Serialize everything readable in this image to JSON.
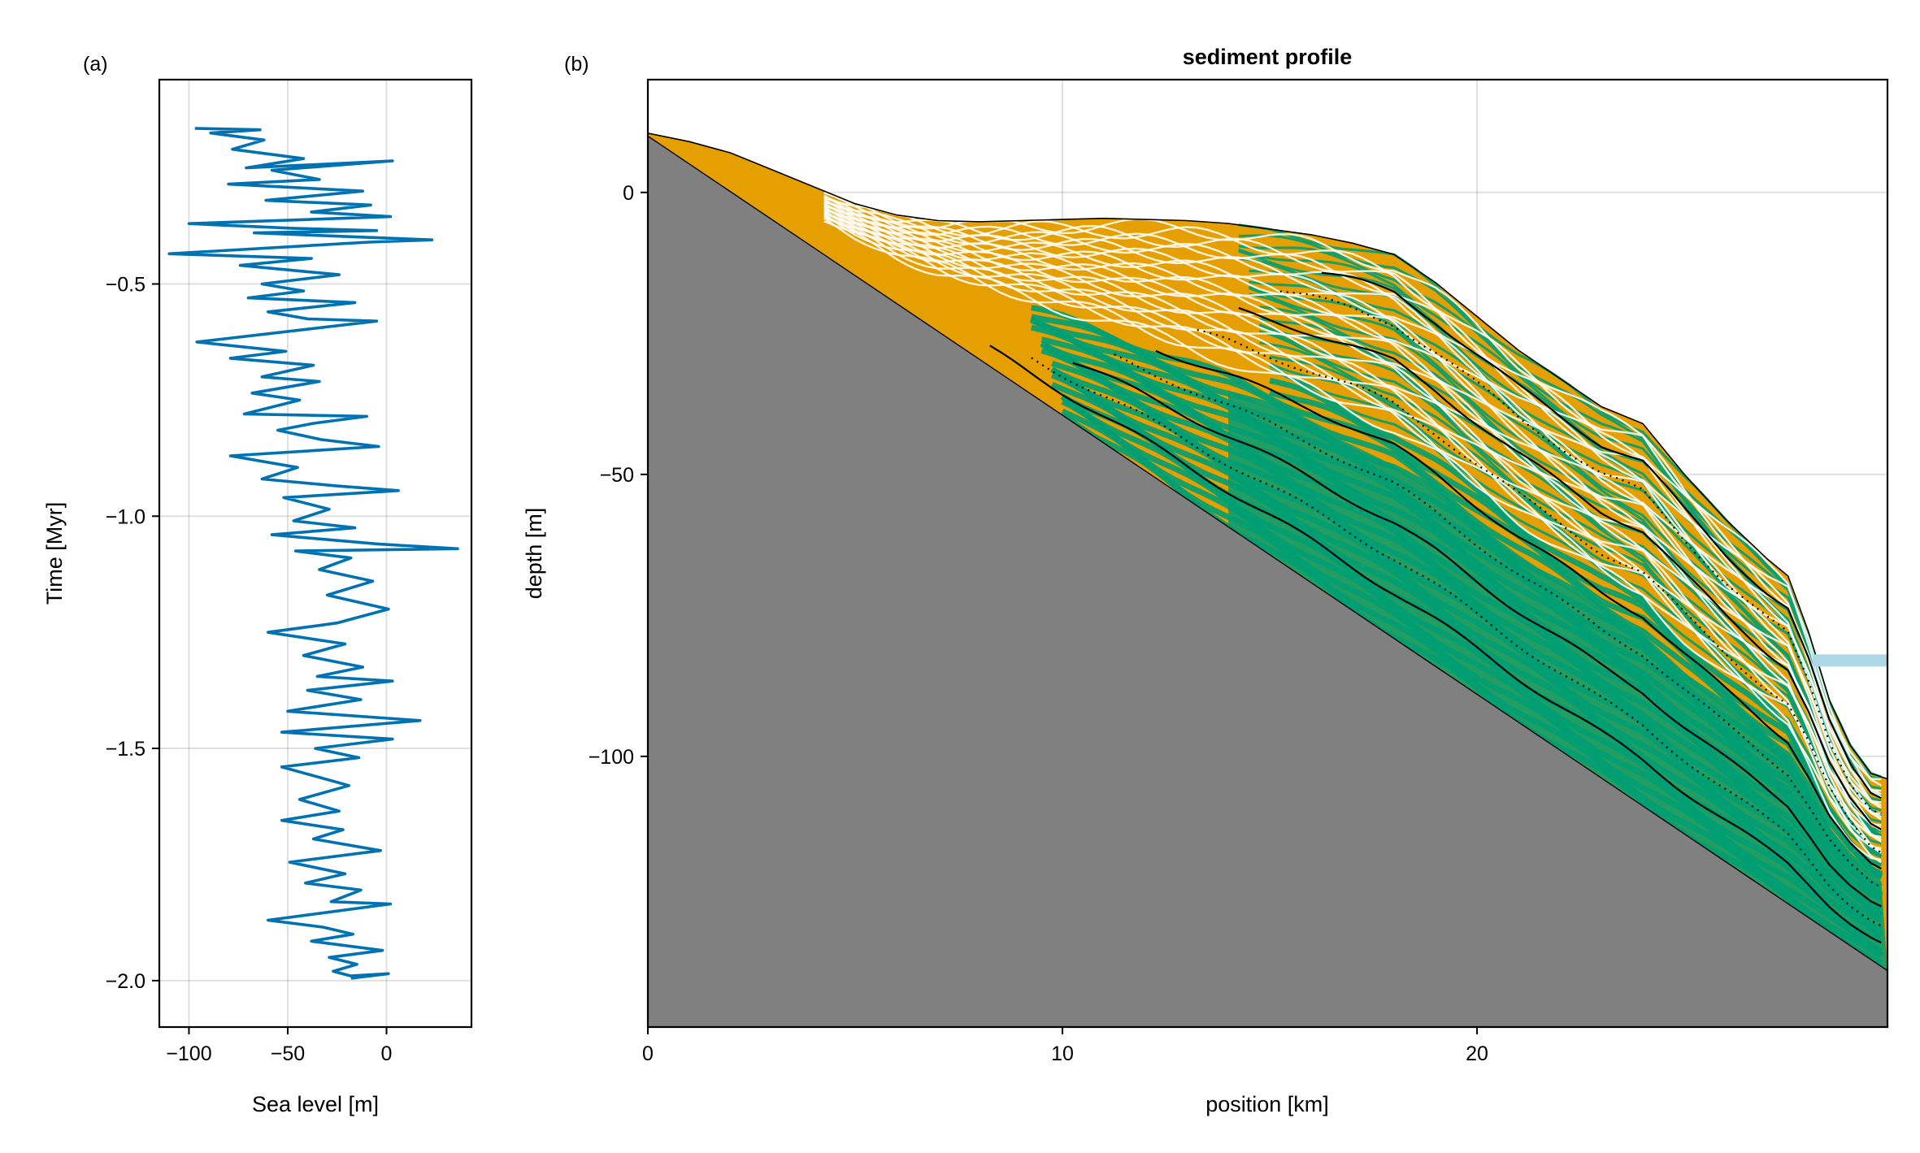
{
  "chart_data": [
    {
      "panel": "(a)",
      "type": "line",
      "title": "",
      "xlabel": "Sea level [m]",
      "ylabel": "Time [Myr]",
      "xlim": [
        -115,
        43
      ],
      "ylim": [
        -2.1,
        -0.06
      ],
      "xticks": [
        -100,
        -50,
        0
      ],
      "xtick_labels": [
        "−100",
        "−50",
        "0"
      ],
      "yticks": [
        -2.0,
        -1.5,
        -1.0,
        -0.5
      ],
      "ytick_labels": [
        "−2.0",
        "−1.5",
        "−1.0",
        "−0.5"
      ],
      "grid": true,
      "series": [
        {
          "color": "#0072b2",
          "points": [
            [
              -97,
              -0.165
            ],
            [
              -64,
              -0.168
            ],
            [
              -89,
              -0.175
            ],
            [
              -62,
              -0.19
            ],
            [
              -78,
              -0.21
            ],
            [
              -42,
              -0.23
            ],
            [
              -71,
              -0.25
            ],
            [
              3,
              -0.235
            ],
            [
              -58,
              -0.255
            ],
            [
              -34,
              -0.275
            ],
            [
              -80,
              -0.285
            ],
            [
              -12,
              -0.3
            ],
            [
              -61,
              -0.32
            ],
            [
              -8,
              -0.33
            ],
            [
              -38,
              -0.345
            ],
            [
              2,
              -0.355
            ],
            [
              -100,
              -0.37
            ],
            [
              -48,
              -0.38
            ],
            [
              -5,
              -0.385
            ],
            [
              -67,
              -0.39
            ],
            [
              23,
              -0.405
            ],
            [
              -9,
              -0.41
            ],
            [
              -110,
              -0.435
            ],
            [
              -38,
              -0.445
            ],
            [
              -74,
              -0.46
            ],
            [
              -24,
              -0.48
            ],
            [
              -63,
              -0.5
            ],
            [
              -42,
              -0.515
            ],
            [
              -70,
              -0.53
            ],
            [
              -16,
              -0.54
            ],
            [
              -60,
              -0.56
            ],
            [
              -40,
              -0.575
            ],
            [
              -5,
              -0.58
            ],
            [
              -96,
              -0.625
            ],
            [
              -51,
              -0.645
            ],
            [
              -79,
              -0.66
            ],
            [
              -37,
              -0.675
            ],
            [
              -63,
              -0.7
            ],
            [
              -34,
              -0.71
            ],
            [
              -68,
              -0.735
            ],
            [
              -44,
              -0.75
            ],
            [
              -72,
              -0.78
            ],
            [
              -10,
              -0.785
            ],
            [
              -37,
              -0.8
            ],
            [
              -55,
              -0.815
            ],
            [
              -33,
              -0.835
            ],
            [
              -4,
              -0.85
            ],
            [
              -79,
              -0.87
            ],
            [
              -45,
              -0.895
            ],
            [
              -63,
              -0.92
            ],
            [
              -25,
              -0.935
            ],
            [
              6,
              -0.945
            ],
            [
              -52,
              -0.96
            ],
            [
              -29,
              -0.985
            ],
            [
              -47,
              -1.01
            ],
            [
              -16,
              -1.025
            ],
            [
              -58,
              -1.04
            ],
            [
              -4,
              -1.06
            ],
            [
              36,
              -1.07
            ],
            [
              -46,
              -1.075
            ],
            [
              -18,
              -1.09
            ],
            [
              -34,
              -1.115
            ],
            [
              -7,
              -1.14
            ],
            [
              -30,
              -1.17
            ],
            [
              1,
              -1.2
            ],
            [
              -25,
              -1.23
            ],
            [
              -60,
              -1.25
            ],
            [
              -21,
              -1.275
            ],
            [
              -42,
              -1.3
            ],
            [
              -12,
              -1.325
            ],
            [
              -35,
              -1.345
            ],
            [
              3,
              -1.355
            ],
            [
              -40,
              -1.375
            ],
            [
              -13,
              -1.395
            ],
            [
              -50,
              -1.42
            ],
            [
              17,
              -1.44
            ],
            [
              -53,
              -1.465
            ],
            [
              3,
              -1.48
            ],
            [
              -36,
              -1.5
            ],
            [
              -14,
              -1.52
            ],
            [
              -53,
              -1.54
            ],
            [
              -19,
              -1.58
            ],
            [
              -44,
              -1.61
            ],
            [
              -24,
              -1.635
            ],
            [
              -53,
              -1.655
            ],
            [
              -22,
              -1.675
            ],
            [
              -37,
              -1.695
            ],
            [
              -3,
              -1.72
            ],
            [
              -49,
              -1.745
            ],
            [
              -21,
              -1.77
            ],
            [
              -41,
              -1.79
            ],
            [
              -13,
              -1.805
            ],
            [
              -28,
              -1.83
            ],
            [
              2,
              -1.835
            ],
            [
              -60,
              -1.87
            ],
            [
              -32,
              -1.885
            ],
            [
              -17,
              -1.9
            ],
            [
              -38,
              -1.915
            ],
            [
              -2,
              -1.935
            ],
            [
              -29,
              -1.95
            ],
            [
              -15,
              -1.965
            ],
            [
              -27,
              -1.98
            ],
            [
              -18,
              -1.99
            ],
            [
              1,
              -1.985
            ],
            [
              -18,
              -1.995
            ]
          ]
        }
      ]
    },
    {
      "panel": "(b)",
      "type": "area",
      "title": "sediment profile",
      "xlabel": "position [km]",
      "ylabel": "depth [m]",
      "xlim": [
        0,
        29.9
      ],
      "ylim": [
        -148,
        20
      ],
      "xticks": [
        0,
        10,
        20
      ],
      "xtick_labels": [
        "0",
        "10",
        "20"
      ],
      "yticks": [
        0,
        -50,
        -100
      ],
      "ytick_labels": [
        "0",
        "−50",
        "−100"
      ],
      "grid": true,
      "colors": {
        "bedrock": "#808080",
        "sediment_orange": "#e69f00",
        "sediment_green": "#009e73",
        "boundary": "#000000",
        "sea_level": "#add8e6"
      },
      "bedrock_top": [
        [
          0,
          10
        ],
        [
          29.9,
          -138
        ]
      ],
      "sediment_surface": [
        [
          0,
          10.5
        ],
        [
          1,
          9
        ],
        [
          2,
          7
        ],
        [
          3,
          4
        ],
        [
          4,
          1
        ],
        [
          5,
          -2
        ],
        [
          6,
          -4
        ],
        [
          7,
          -5
        ],
        [
          8,
          -5.2
        ],
        [
          9,
          -5
        ],
        [
          10,
          -4.8
        ],
        [
          11,
          -4.6
        ],
        [
          12,
          -4.8
        ],
        [
          13,
          -5
        ],
        [
          14,
          -5.5
        ],
        [
          15,
          -6.5
        ],
        [
          16,
          -7.5
        ],
        [
          17,
          -9
        ],
        [
          18,
          -11
        ],
        [
          19,
          -16
        ],
        [
          20,
          -22
        ],
        [
          21,
          -28
        ],
        [
          22,
          -33
        ],
        [
          23,
          -38
        ],
        [
          24,
          -41
        ],
        [
          25,
          -50
        ],
        [
          26,
          -58
        ],
        [
          27,
          -65
        ],
        [
          27.5,
          -68
        ],
        [
          28,
          -78
        ],
        [
          28.5,
          -90
        ],
        [
          29,
          -98
        ],
        [
          29.5,
          -103
        ],
        [
          29.9,
          -104
        ]
      ],
      "sea_level_bar": {
        "x_from": 28.1,
        "x_to": 29.9,
        "depth": -83
      }
    }
  ]
}
